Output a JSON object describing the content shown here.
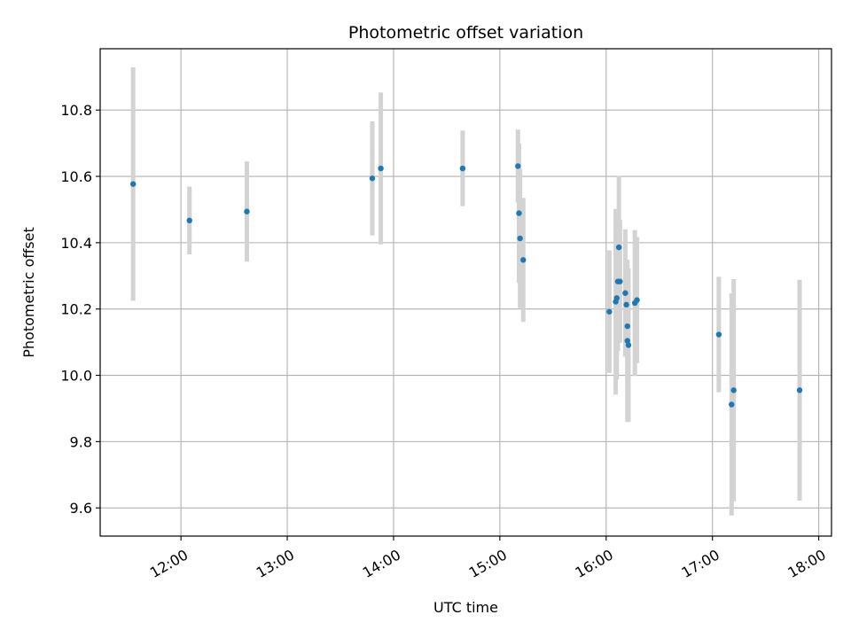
{
  "chart_data": {
    "type": "scatter",
    "title": "Photometric offset variation",
    "xlabel": "UTC time",
    "ylabel": "Photometric offset",
    "x_unit": "UTC hour of day",
    "xlim": [
      11.24,
      18.12
    ],
    "ylim": [
      9.515,
      10.985
    ],
    "x_ticks": [
      {
        "value": 12,
        "label": "12:00"
      },
      {
        "value": 13,
        "label": "13:00"
      },
      {
        "value": 14,
        "label": "14:00"
      },
      {
        "value": 15,
        "label": "15:00"
      },
      {
        "value": 16,
        "label": "16:00"
      },
      {
        "value": 17,
        "label": "17:00"
      },
      {
        "value": 18,
        "label": "18:00"
      }
    ],
    "y_ticks": [
      {
        "value": 9.6,
        "label": "9.6"
      },
      {
        "value": 9.8,
        "label": "9.8"
      },
      {
        "value": 10.0,
        "label": "10.0"
      },
      {
        "value": 10.2,
        "label": "10.2"
      },
      {
        "value": 10.4,
        "label": "10.4"
      },
      {
        "value": 10.6,
        "label": "10.6"
      },
      {
        "value": 10.8,
        "label": "10.8"
      }
    ],
    "grid": true,
    "colors": {
      "point": "#1f77b4",
      "errorbar": "#d3d3d3",
      "grid": "#b0b0b0"
    },
    "points": [
      {
        "x": 11.55,
        "y": 10.577,
        "err": 0.352
      },
      {
        "x": 12.08,
        "y": 10.467,
        "err": 0.102
      },
      {
        "x": 12.62,
        "y": 10.494,
        "err": 0.151
      },
      {
        "x": 13.8,
        "y": 10.594,
        "err": 0.172
      },
      {
        "x": 13.88,
        "y": 10.624,
        "err": 0.229
      },
      {
        "x": 14.65,
        "y": 10.624,
        "err": 0.114
      },
      {
        "x": 15.17,
        "y": 10.631,
        "err": 0.11
      },
      {
        "x": 15.18,
        "y": 10.489,
        "err": 0.21
      },
      {
        "x": 15.19,
        "y": 10.413,
        "err": 0.21
      },
      {
        "x": 15.22,
        "y": 10.348,
        "err": 0.187
      },
      {
        "x": 16.03,
        "y": 10.192,
        "err": 0.185
      },
      {
        "x": 16.09,
        "y": 10.222,
        "err": 0.28
      },
      {
        "x": 16.1,
        "y": 10.233,
        "err": 0.245
      },
      {
        "x": 16.11,
        "y": 10.283,
        "err": 0.21
      },
      {
        "x": 16.12,
        "y": 10.386,
        "err": 0.215
      },
      {
        "x": 16.13,
        "y": 10.283,
        "err": 0.185
      },
      {
        "x": 16.18,
        "y": 10.248,
        "err": 0.192
      },
      {
        "x": 16.19,
        "y": 10.213,
        "err": 0.11
      },
      {
        "x": 16.2,
        "y": 10.148,
        "err": 0.168
      },
      {
        "x": 16.2,
        "y": 10.104,
        "err": 0.245
      },
      {
        "x": 16.21,
        "y": 10.091,
        "err": 0.231
      },
      {
        "x": 16.27,
        "y": 10.218,
        "err": 0.22
      },
      {
        "x": 16.29,
        "y": 10.227,
        "err": 0.19
      },
      {
        "x": 17.06,
        "y": 10.123,
        "err": 0.174
      },
      {
        "x": 17.18,
        "y": 9.912,
        "err": 0.335
      },
      {
        "x": 17.2,
        "y": 9.955,
        "err": 0.335
      },
      {
        "x": 17.82,
        "y": 9.955,
        "err": 0.333
      }
    ]
  }
}
